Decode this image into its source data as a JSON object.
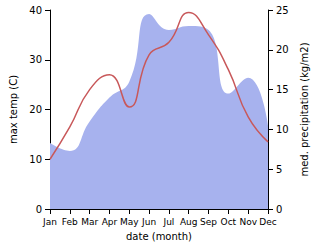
{
  "chart_data": {
    "type": "line",
    "categories": [
      "Jan",
      "Feb",
      "Mar",
      "Apr",
      "May",
      "Jun",
      "Jul",
      "Aug",
      "Sep",
      "Oct",
      "Nov",
      "Dec"
    ],
    "x_label": "date (month)",
    "y_label": "max temp (C)",
    "y2_label": "med. precipitation (kg/m2)",
    "ylim": [
      0,
      40
    ],
    "yticks": [
      0,
      10,
      20,
      30,
      40
    ],
    "y2lim": [
      0,
      25
    ],
    "y2ticks": [
      0,
      5,
      10,
      15,
      20,
      25
    ],
    "grid": false,
    "series": [
      {
        "name": "med. precipitation",
        "type": "area",
        "axis": "y2",
        "color": "#a7b2ee",
        "values": [
          8.3,
          7.3,
          11,
          14,
          16,
          24.5,
          22.5,
          23,
          22.5,
          14.5,
          16.5,
          10.5
        ]
      },
      {
        "name": "max temp",
        "type": "line",
        "color": "#c8585a",
        "values": [
          10,
          16.5,
          24,
          27,
          20.5,
          31,
          33.5,
          39.5,
          35,
          28,
          18.5,
          13.5
        ]
      }
    ]
  }
}
